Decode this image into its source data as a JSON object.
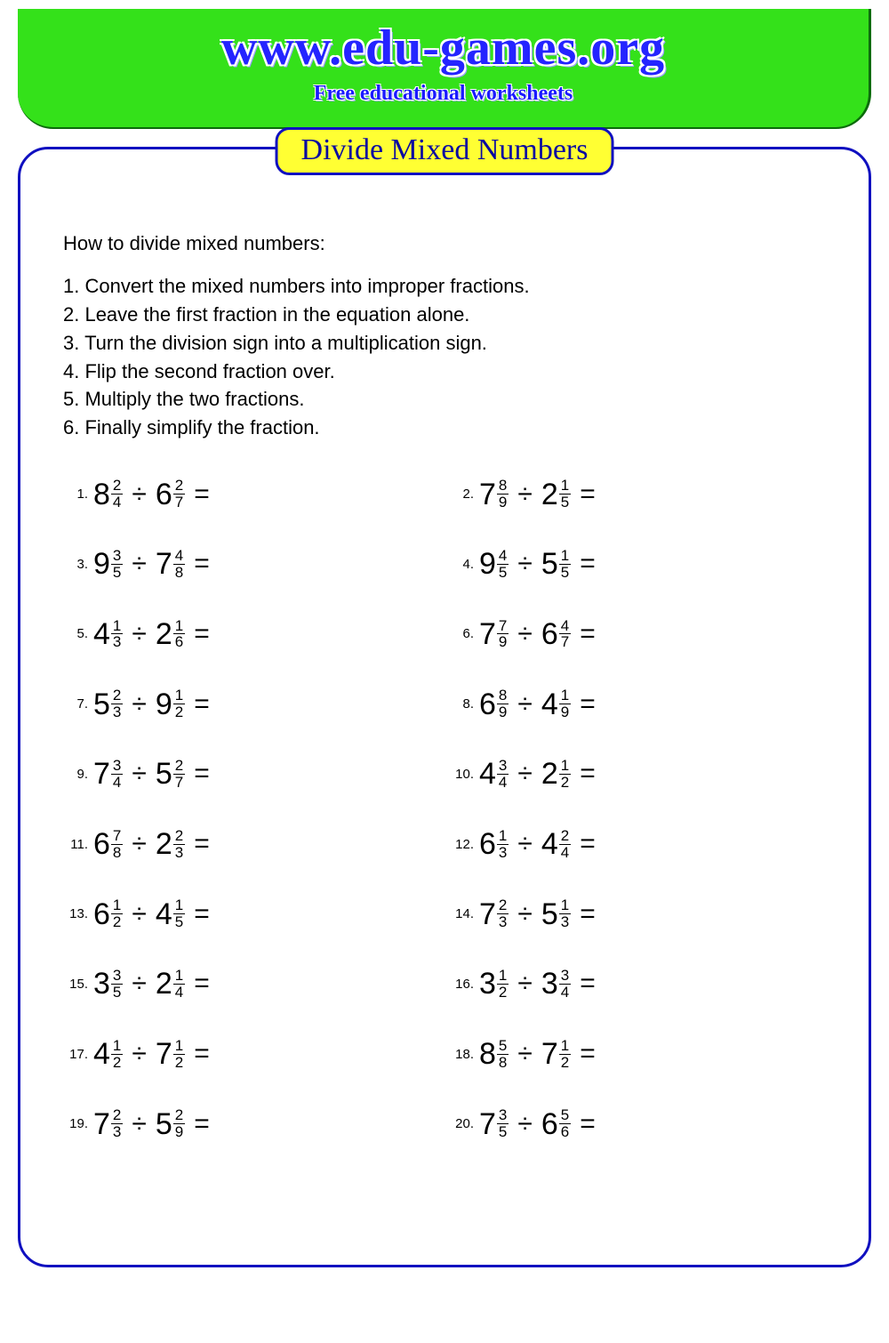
{
  "header": {
    "title": "www.edu-games.org",
    "subtitle": "Free educational worksheets",
    "bg_color": "#34e11a",
    "title_color": "#2424ff",
    "subtitle_color": "#1a1aff"
  },
  "worksheet": {
    "badge": "Divide Mixed Numbers",
    "badge_bg": "#ffff33",
    "frame_border_color": "#1010c0",
    "lead": "How to divide mixed numbers:",
    "steps": [
      "1. Convert the mixed numbers into improper fractions.",
      "2. Leave the first fraction in the equation alone.",
      "3. Turn the division sign into a multiplication sign.",
      "4. Flip the second fraction over.",
      "5. Multiply the two fractions.",
      "6. Finally simplify the fraction."
    ],
    "operator": "÷",
    "equals": "=",
    "problems": [
      {
        "n": "1.",
        "a": {
          "w": "8",
          "num": "2",
          "den": "4"
        },
        "b": {
          "w": "6",
          "num": "2",
          "den": "7"
        }
      },
      {
        "n": "2.",
        "a": {
          "w": "7",
          "num": "8",
          "den": "9"
        },
        "b": {
          "w": "2",
          "num": "1",
          "den": "5"
        }
      },
      {
        "n": "3.",
        "a": {
          "w": "9",
          "num": "3",
          "den": "5"
        },
        "b": {
          "w": "7",
          "num": "4",
          "den": "8"
        }
      },
      {
        "n": "4.",
        "a": {
          "w": "9",
          "num": "4",
          "den": "5"
        },
        "b": {
          "w": "5",
          "num": "1",
          "den": "5"
        }
      },
      {
        "n": "5.",
        "a": {
          "w": "4",
          "num": "1",
          "den": "3"
        },
        "b": {
          "w": "2",
          "num": "1",
          "den": "6"
        }
      },
      {
        "n": "6.",
        "a": {
          "w": "7",
          "num": "7",
          "den": "9"
        },
        "b": {
          "w": "6",
          "num": "4",
          "den": "7"
        }
      },
      {
        "n": "7.",
        "a": {
          "w": "5",
          "num": "2",
          "den": "3"
        },
        "b": {
          "w": "9",
          "num": "1",
          "den": "2"
        }
      },
      {
        "n": "8.",
        "a": {
          "w": "6",
          "num": "8",
          "den": "9"
        },
        "b": {
          "w": "4",
          "num": "1",
          "den": "9"
        }
      },
      {
        "n": "9.",
        "a": {
          "w": "7",
          "num": "3",
          "den": "4"
        },
        "b": {
          "w": "5",
          "num": "2",
          "den": "7"
        }
      },
      {
        "n": "10.",
        "a": {
          "w": "4",
          "num": "3",
          "den": "4"
        },
        "b": {
          "w": "2",
          "num": "1",
          "den": "2"
        }
      },
      {
        "n": "11.",
        "a": {
          "w": "6",
          "num": "7",
          "den": "8"
        },
        "b": {
          "w": "2",
          "num": "2",
          "den": "3"
        }
      },
      {
        "n": "12.",
        "a": {
          "w": "6",
          "num": "1",
          "den": "3"
        },
        "b": {
          "w": "4",
          "num": "2",
          "den": "4"
        }
      },
      {
        "n": "13.",
        "a": {
          "w": "6",
          "num": "1",
          "den": "2"
        },
        "b": {
          "w": "4",
          "num": "1",
          "den": "5"
        }
      },
      {
        "n": "14.",
        "a": {
          "w": "7",
          "num": "2",
          "den": "3"
        },
        "b": {
          "w": "5",
          "num": "1",
          "den": "3"
        }
      },
      {
        "n": "15.",
        "a": {
          "w": "3",
          "num": "3",
          "den": "5"
        },
        "b": {
          "w": "2",
          "num": "1",
          "den": "4"
        }
      },
      {
        "n": "16.",
        "a": {
          "w": "3",
          "num": "1",
          "den": "2"
        },
        "b": {
          "w": "3",
          "num": "3",
          "den": "4"
        }
      },
      {
        "n": "17.",
        "a": {
          "w": "4",
          "num": "1",
          "den": "2"
        },
        "b": {
          "w": "7",
          "num": "1",
          "den": "2"
        }
      },
      {
        "n": "18.",
        "a": {
          "w": "8",
          "num": "5",
          "den": "8"
        },
        "b": {
          "w": "7",
          "num": "1",
          "den": "2"
        }
      },
      {
        "n": "19.",
        "a": {
          "w": "7",
          "num": "2",
          "den": "3"
        },
        "b": {
          "w": "5",
          "num": "2",
          "den": "9"
        }
      },
      {
        "n": "20.",
        "a": {
          "w": "7",
          "num": "3",
          "den": "5"
        },
        "b": {
          "w": "6",
          "num": "5",
          "den": "6"
        }
      }
    ]
  }
}
